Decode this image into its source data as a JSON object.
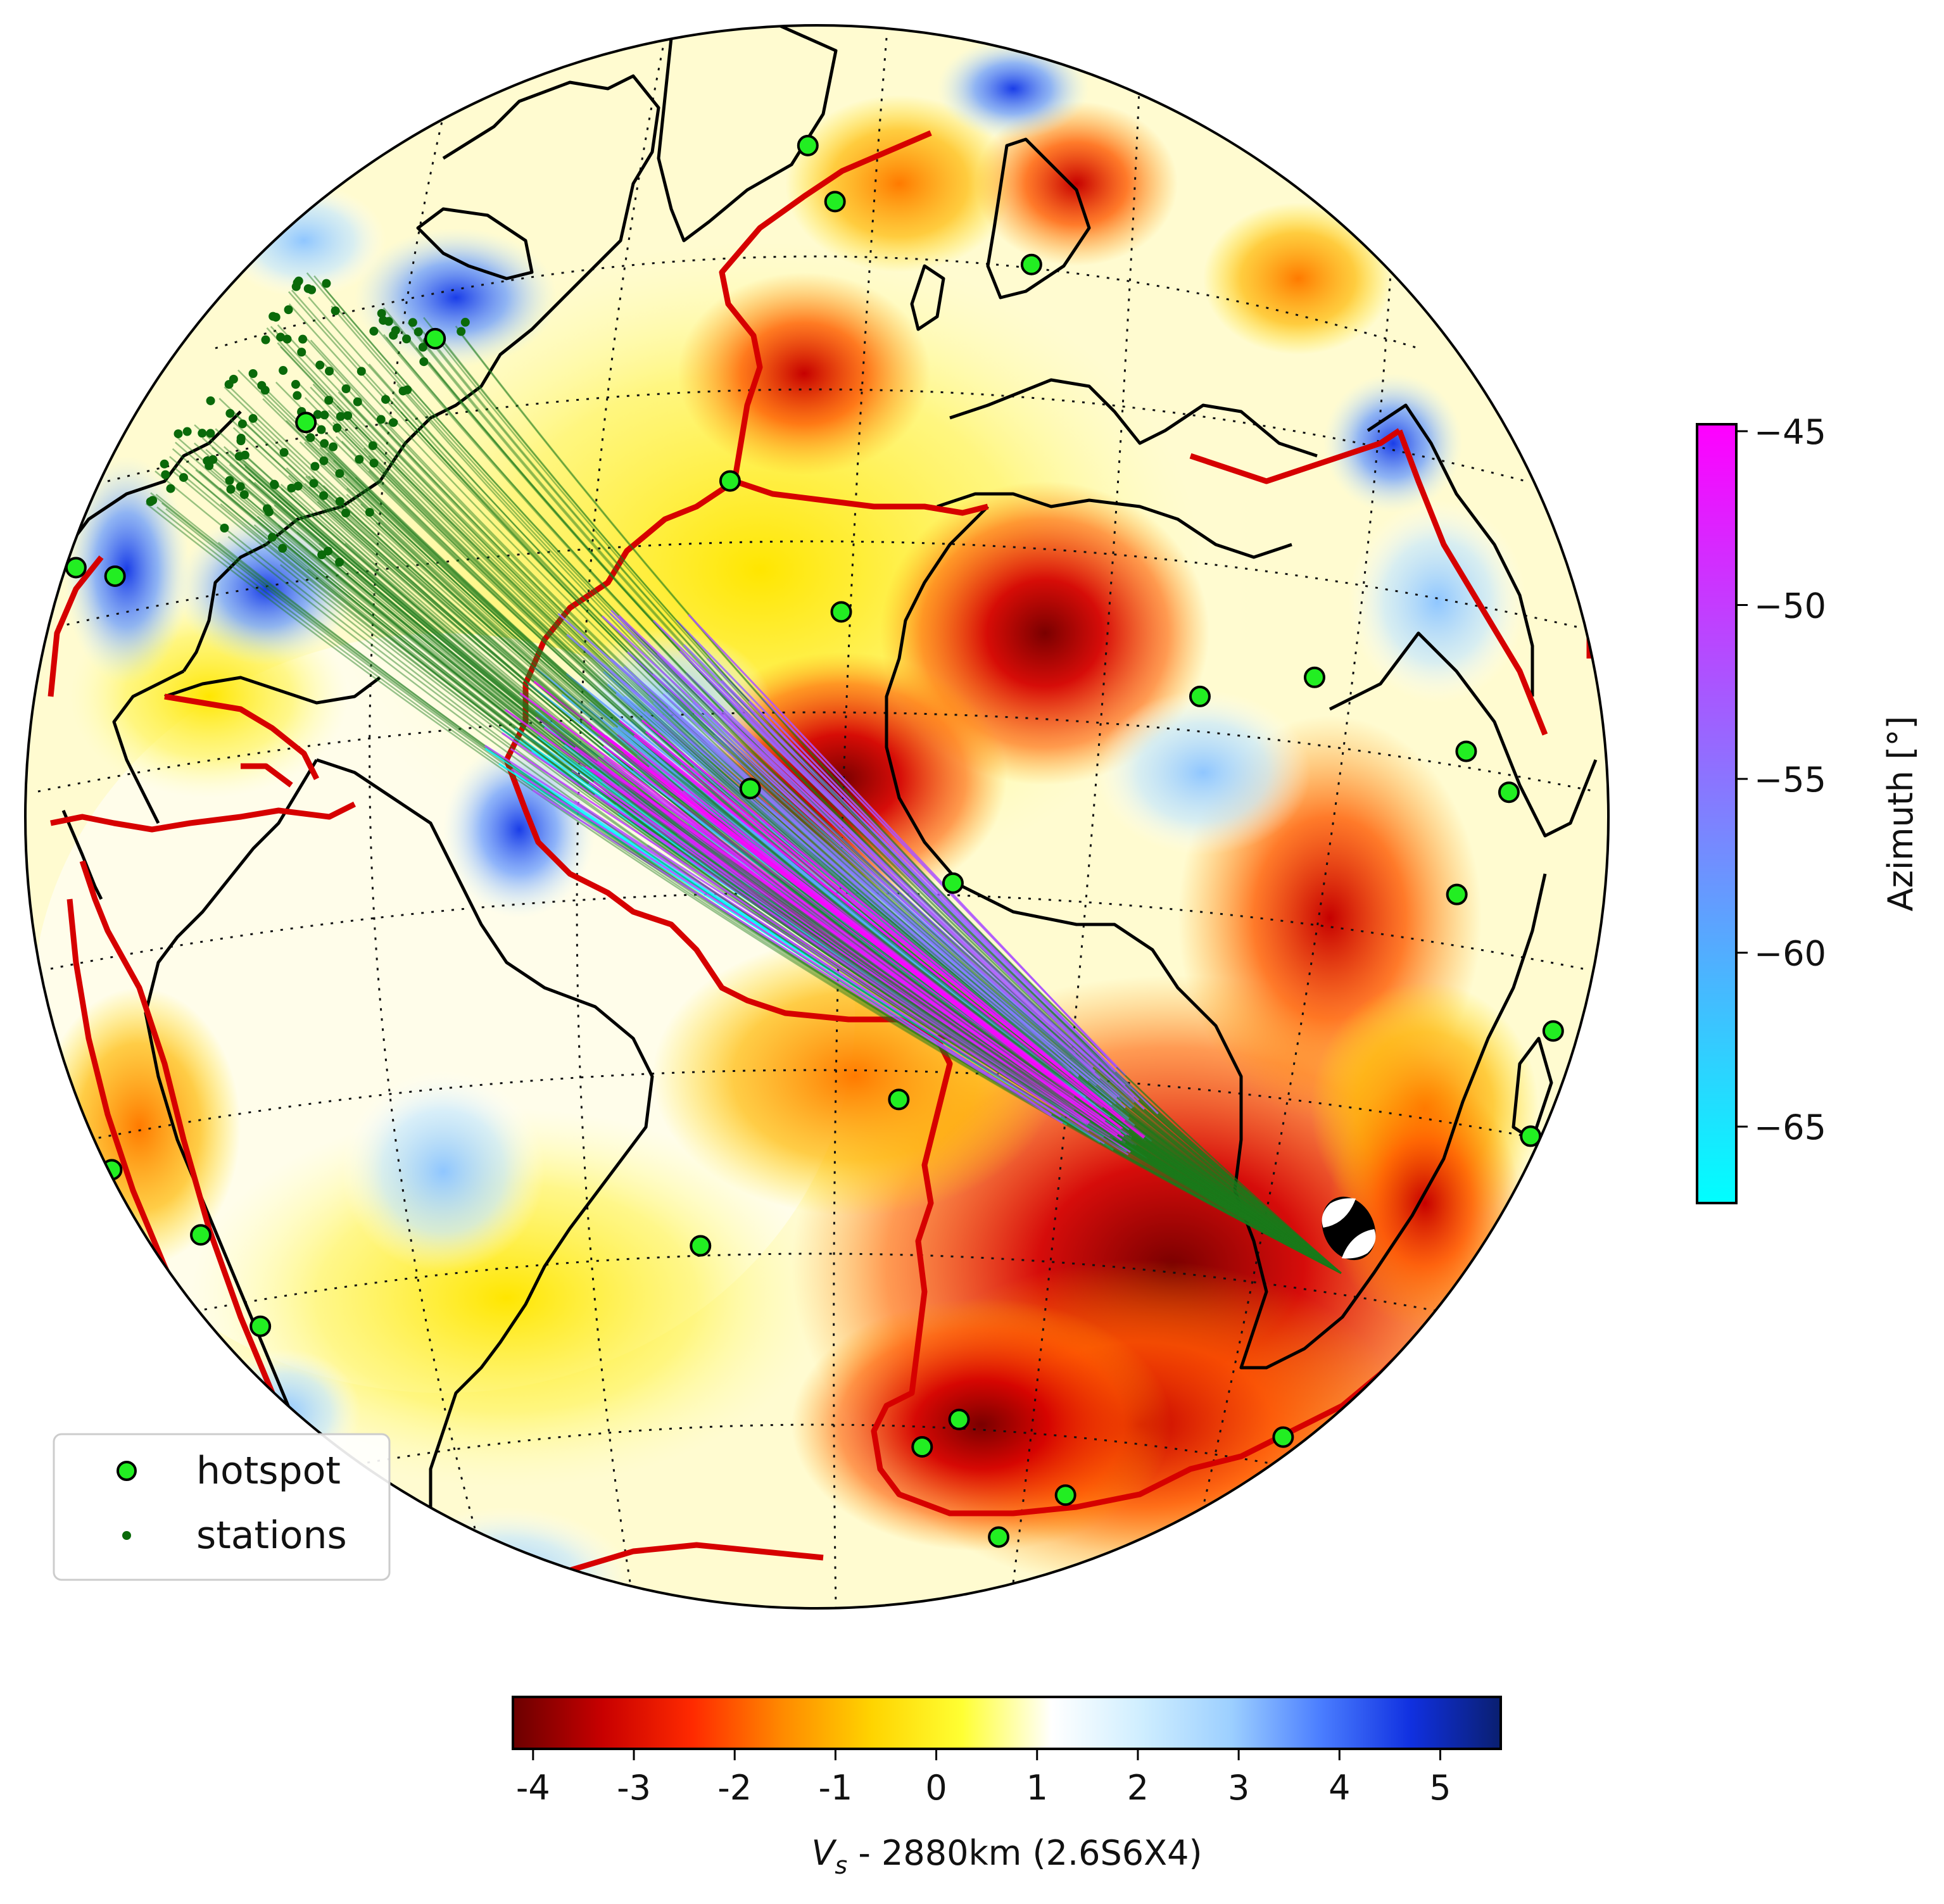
{
  "figure": {
    "projection": "orthographic globe",
    "background_field": "Vs perturbation at 2880 km depth (2.6S6X4)"
  },
  "legend": {
    "items": [
      {
        "label": "hotspot",
        "marker": "lime-circle-black-edge",
        "color": "#22ee22"
      },
      {
        "label": "stations",
        "marker": "small-dark-green-dot",
        "color": "#0a6a0a"
      }
    ]
  },
  "vs_colorbar": {
    "label_parts": {
      "sym": "V",
      "sub": "s",
      "rest": " - 2880km (2.6S6X4)"
    },
    "tick_labels": [
      "-4",
      "-3",
      "-2",
      "-1",
      "0",
      "1",
      "2",
      "3",
      "4",
      "5"
    ],
    "range": [
      -4.2,
      5.6
    ],
    "colors": [
      "#6b0000",
      "#c80000",
      "#ff2a00",
      "#ff8a00",
      "#ffd400",
      "#ffff33",
      "#ffffff",
      "#cfeeff",
      "#9ccfff",
      "#4a7dff",
      "#1030e0",
      "#0a1f70"
    ]
  },
  "azimuth_colorbar": {
    "label": "Azimuth [°]",
    "tick_labels": [
      "−45",
      "−50",
      "−55",
      "−60",
      "−65"
    ],
    "tick_values": [
      -45,
      -50,
      -55,
      -60,
      -65
    ],
    "range": [
      -67.2,
      -44.8
    ],
    "colors": [
      "#00ffff",
      "#ff00ff"
    ]
  },
  "chart_data": {
    "type": "scatter",
    "title": "",
    "event": {
      "name": "earthquake source (focal mechanism beachball)",
      "lon": 28,
      "lat": -27
    },
    "hotspots": [
      {
        "lon": -17,
        "lat": 64
      },
      {
        "lon": -22,
        "lat": 71
      },
      {
        "lon": 9,
        "lat": 56
      },
      {
        "lon": -65,
        "lat": 47
      },
      {
        "lon": -75,
        "lat": 38
      },
      {
        "lon": -93,
        "lat": 22
      },
      {
        "lon": -105,
        "lat": 20
      },
      {
        "lon": -109,
        "lat": -27
      },
      {
        "lon": -80,
        "lat": -26
      },
      {
        "lon": -78,
        "lat": -34
      },
      {
        "lon": -28,
        "lat": 38
      },
      {
        "lon": -18,
        "lat": 28
      },
      {
        "lon": -25,
        "lat": 15
      },
      {
        "lon": -10,
        "lat": 8
      },
      {
        "lon": 11,
        "lat": 20
      },
      {
        "lon": 22,
        "lat": 20
      },
      {
        "lon": 37,
        "lat": 12
      },
      {
        "lon": 42,
        "lat": 8
      },
      {
        "lon": -14,
        "lat": -8
      },
      {
        "lon": -29,
        "lat": -20
      },
      {
        "lon": -7,
        "lat": -37
      },
      {
        "lon": -10,
        "lat": -40
      },
      {
        "lon": 8,
        "lat": -48
      },
      {
        "lon": 3,
        "lat": -54
      },
      {
        "lon": 34,
        "lat": 2
      },
      {
        "lon": 52,
        "lat": -12
      },
      {
        "lon": 55,
        "lat": -21
      },
      {
        "lon": 38,
        "lat": -46
      }
    ],
    "stations": {
      "region": "eastern North America",
      "lon_range": [
        -95,
        -62
      ],
      "lat_range": [
        28,
        49
      ]
    },
    "ray_paths": {
      "count_shown": 200,
      "azimuth_range_deg": [
        -67,
        -45
      ]
    }
  }
}
